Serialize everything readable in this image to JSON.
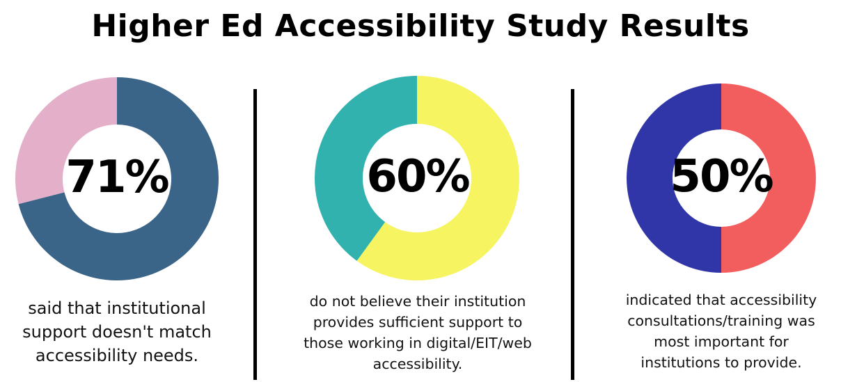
{
  "title": "Higher Ed Accessibility Study Results",
  "chart_data": [
    {
      "type": "pie",
      "variant": "donut",
      "value_label": "71%",
      "slices": [
        {
          "value": 71,
          "color": "#3A6488"
        },
        {
          "value": 29,
          "color": "#E3AFC9"
        }
      ],
      "caption_lines": [
        "said that institutional",
        "support doesn't match",
        "accessibility needs."
      ]
    },
    {
      "type": "pie",
      "variant": "donut",
      "value_label": "60%",
      "slices": [
        {
          "value": 60,
          "color": "#F7F462"
        },
        {
          "value": 40,
          "color": "#32B2AE"
        }
      ],
      "caption_lines": [
        "do not believe their institution",
        "provides sufficient support to",
        "those working in digital/EIT/web",
        "accessibility."
      ]
    },
    {
      "type": "pie",
      "variant": "donut",
      "value_label": "50%",
      "slices": [
        {
          "value": 50,
          "color": "#F25E5E"
        },
        {
          "value": 50,
          "color": "#3036A8"
        }
      ],
      "caption_lines": [
        "indicated that accessibility",
        "consultations/training was",
        "most important for",
        "institutions to provide."
      ]
    }
  ]
}
